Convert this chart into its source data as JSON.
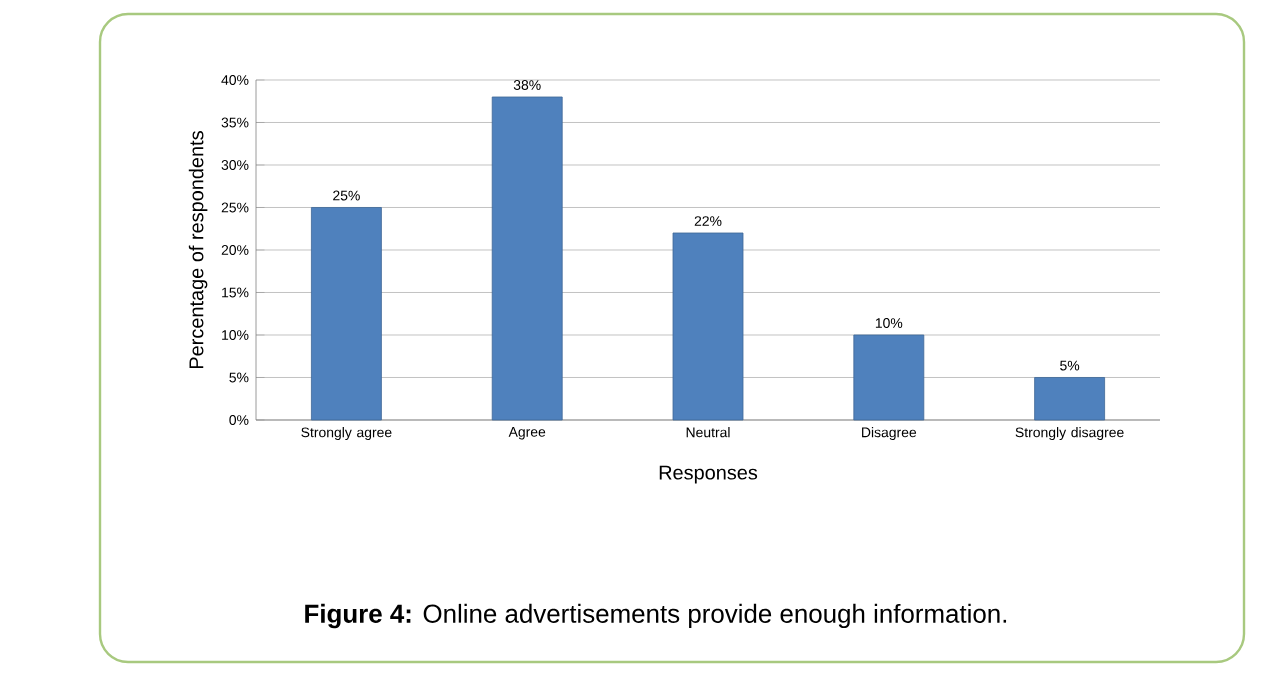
{
  "chart_data": {
    "type": "bar",
    "title": "**Figure 4:** Online advertisements provide enough information.",
    "xlabel": "Responses",
    "ylabel": "Percentage of respondents",
    "categories": [
      "Strongly agree",
      "Agree",
      "Neutral",
      "Disagree",
      "Strongly disagree"
    ],
    "values": [
      25,
      38,
      22,
      10,
      5
    ],
    "value_labels": [
      "25%",
      "38%",
      "22%",
      "10%",
      "5%"
    ],
    "color": "#4f81bd",
    "ylim": [
      0,
      40
    ],
    "yticks": [
      {
        "value": 0,
        "label": "0%"
      },
      {
        "value": 5,
        "label": "5%"
      },
      {
        "value": 10,
        "label": "10%"
      },
      {
        "value": 15,
        "label": "15%"
      },
      {
        "value": 20,
        "label": "20%"
      },
      {
        "value": 25,
        "label": "25%"
      },
      {
        "value": 30,
        "label": "30%"
      },
      {
        "value": 35,
        "label": "35%"
      },
      {
        "value": 40,
        "label": "40%"
      }
    ],
    "grid": "y"
  }
}
